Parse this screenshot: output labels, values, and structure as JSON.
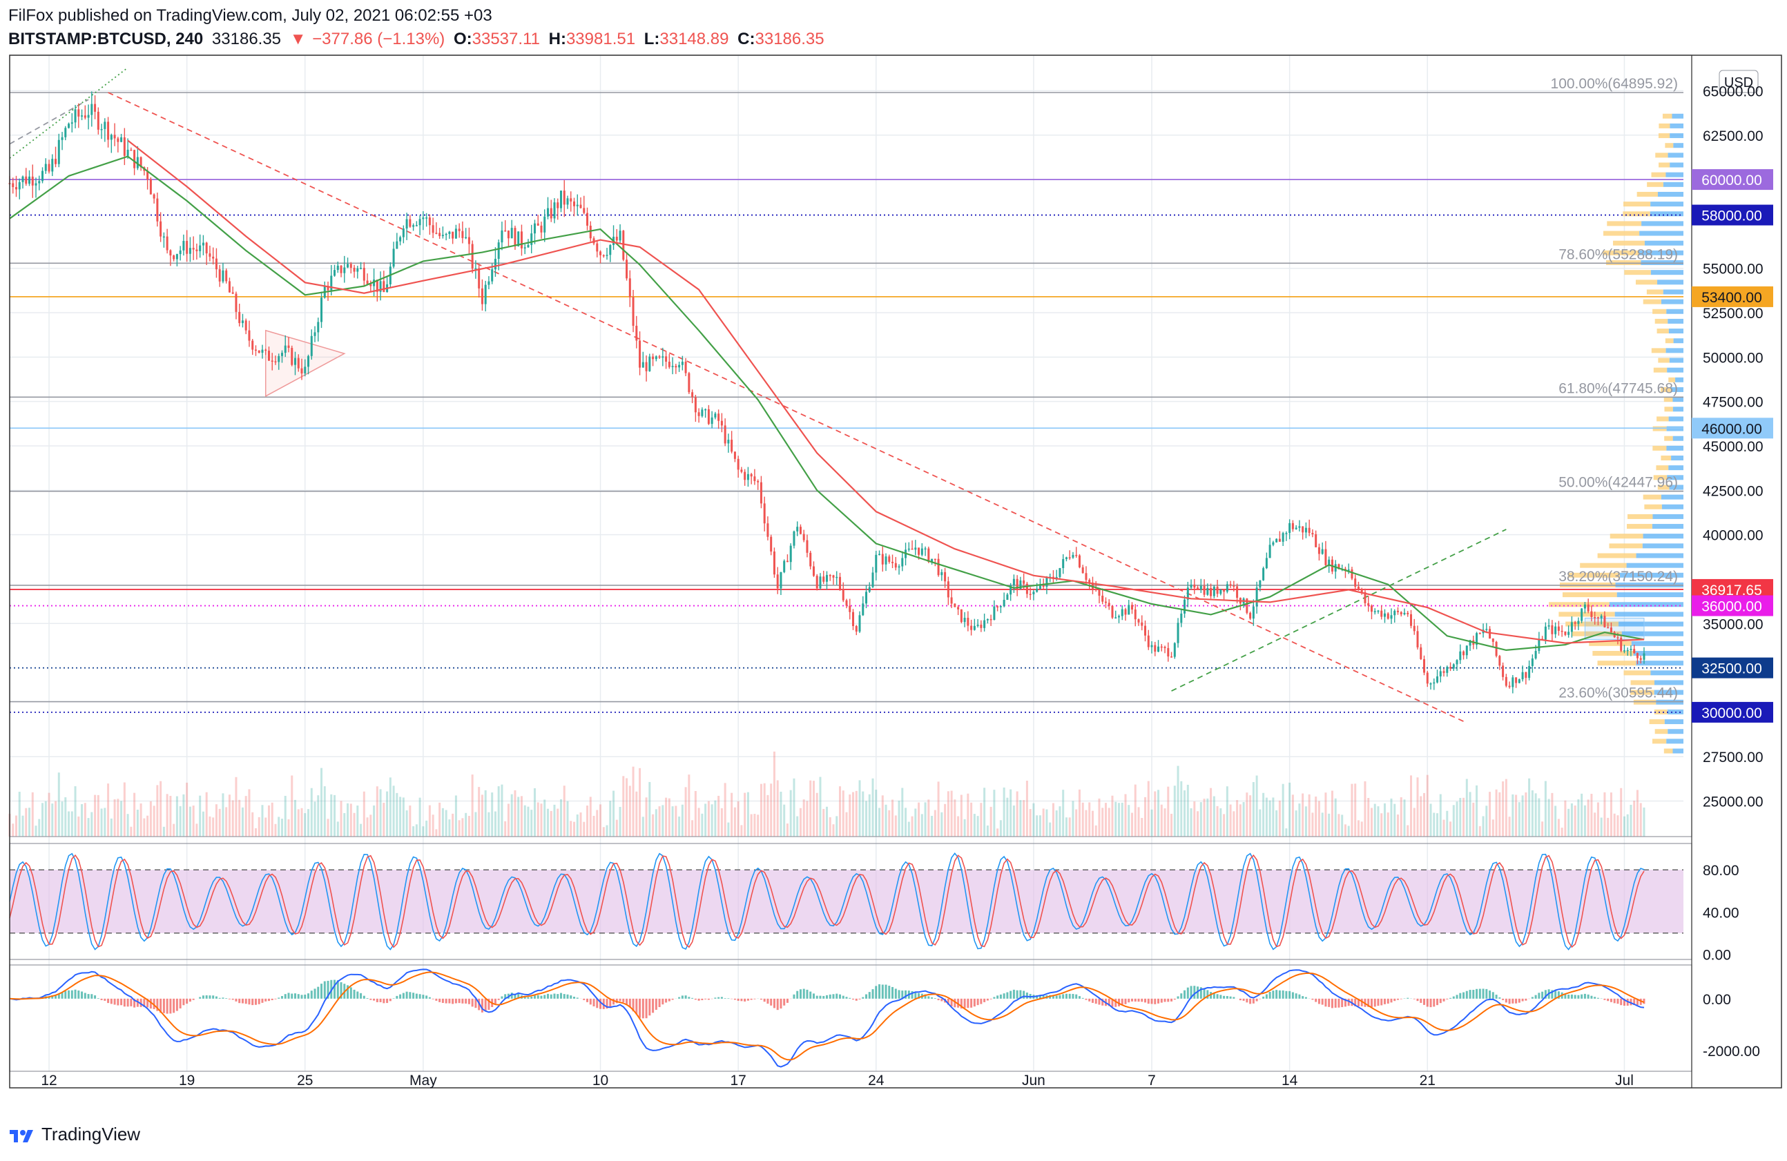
{
  "header": {
    "publisher": "FilFox published on TradingView.com, July 02, 2021 06:02:55 +03",
    "symbol": "BITSTAMP:BTCUSD, 240",
    "last": "33186.35",
    "change_arrow": "▼",
    "change": "−377.86 (−1.13%)",
    "open_label": "O:",
    "open": "33537.11",
    "high_label": "H:",
    "high": "33981.51",
    "low_label": "L:",
    "low": "33148.89",
    "close_label": "C:",
    "close": "33186.35"
  },
  "footer": {
    "brand": "TradingView",
    "logo_icon": "tradingview-logo-icon"
  },
  "colors": {
    "up": "#26a69a",
    "down": "#ef5350",
    "ema_fast": "#43a047",
    "ema_slow": "#ef5350",
    "grid": "#e8ecf0",
    "stoch_k": "#2196f3",
    "stoch_d": "#ef5350",
    "stoch_band": "#e1bee7",
    "macd": "#2962ff",
    "signal": "#ff6d00"
  },
  "chart_data": [
    {
      "type": "candlestick",
      "currency": "USD",
      "y_range": [
        23000,
        67000
      ],
      "x_range_days": [
        "2021-04-10",
        "2021-07-04"
      ],
      "x_ticks": [
        {
          "date": "2021-04-12",
          "label": "12"
        },
        {
          "date": "2021-04-19",
          "label": "19"
        },
        {
          "date": "2021-04-25",
          "label": "25"
        },
        {
          "date": "2021-05-01",
          "label": "May"
        },
        {
          "date": "2021-05-10",
          "label": "10"
        },
        {
          "date": "2021-05-17",
          "label": "17"
        },
        {
          "date": "2021-05-24",
          "label": "24"
        },
        {
          "date": "2021-06-01",
          "label": "Jun"
        },
        {
          "date": "2021-06-07",
          "label": "7"
        },
        {
          "date": "2021-06-14",
          "label": "14"
        },
        {
          "date": "2021-06-21",
          "label": "21"
        },
        {
          "date": "2021-07-01",
          "label": "Jul"
        }
      ],
      "y_ticks": [
        "65000.00",
        "62500.00",
        "55000.00",
        "52500.00",
        "50000.00",
        "47500.00",
        "45000.00",
        "42500.00",
        "40000.00",
        "35000.00",
        "27500.00",
        "25000.00"
      ],
      "fib_levels": [
        {
          "label": "100.00%(64895.92)",
          "value": 64895.92
        },
        {
          "label": "78.60%(55288.19)",
          "value": 55288.19
        },
        {
          "label": "61.80%(47745.68)",
          "value": 47745.68
        },
        {
          "label": "50.00%(42447.96)",
          "value": 42447.96
        },
        {
          "label": "38.20%(37150.24)",
          "value": 37150.24
        },
        {
          "label": "23.60%(30595.44)",
          "value": 30595.44
        }
      ],
      "price_tags": [
        {
          "label": "60000.00",
          "value": 60000,
          "color": "#9c6ade",
          "line": "solid"
        },
        {
          "label": "58000.00",
          "value": 58000,
          "color": "#1a1ab8",
          "line": "dotted"
        },
        {
          "label": "53400.00",
          "value": 53400,
          "color": "#f5a623",
          "line": "solid"
        },
        {
          "label": "46000.00",
          "value": 46000,
          "color": "#90caf9",
          "line": "solid"
        },
        {
          "label": "36917.65",
          "value": 36917.65,
          "color": "#f23645",
          "line": "solid"
        },
        {
          "label": "36000.00",
          "value": 36000,
          "color": "#e91ee9",
          "line": "dotted"
        },
        {
          "label": "32500.00",
          "value": 32500,
          "color": "#0d3b8c",
          "line": "dotted"
        },
        {
          "label": "30000.00",
          "value": 30000,
          "color": "#1a1ab8",
          "line": "dotted"
        }
      ],
      "series_close": [
        [
          "2021-04-10",
          59800
        ],
        [
          "2021-04-11",
          60100
        ],
        [
          "2021-04-12",
          60400
        ],
        [
          "2021-04-13",
          63200
        ],
        [
          "2021-04-14",
          63900
        ],
        [
          "2021-04-15",
          62800
        ],
        [
          "2021-04-16",
          61500
        ],
        [
          "2021-04-17",
          60300
        ],
        [
          "2021-04-18",
          55800
        ],
        [
          "2021-04-19",
          56200
        ],
        [
          "2021-04-20",
          55900
        ],
        [
          "2021-04-21",
          54100
        ],
        [
          "2021-04-22",
          51200
        ],
        [
          "2021-04-23",
          50000
        ],
        [
          "2021-04-24",
          50300
        ],
        [
          "2021-04-25",
          49200
        ],
        [
          "2021-04-26",
          53900
        ],
        [
          "2021-04-27",
          55200
        ],
        [
          "2021-04-28",
          54800
        ],
        [
          "2021-04-29",
          53600
        ],
        [
          "2021-04-30",
          57700
        ],
        [
          "2021-05-01",
          57900
        ],
        [
          "2021-05-02",
          56600
        ],
        [
          "2021-05-03",
          57200
        ],
        [
          "2021-05-04",
          53300
        ],
        [
          "2021-05-05",
          57400
        ],
        [
          "2021-05-06",
          56400
        ],
        [
          "2021-05-07",
          57400
        ],
        [
          "2021-05-08",
          58900
        ],
        [
          "2021-05-09",
          58200
        ],
        [
          "2021-05-10",
          55900
        ],
        [
          "2021-05-11",
          56700
        ],
        [
          "2021-05-12",
          49500
        ],
        [
          "2021-05-13",
          49700
        ],
        [
          "2021-05-14",
          49900
        ],
        [
          "2021-05-15",
          46800
        ],
        [
          "2021-05-16",
          46400
        ],
        [
          "2021-05-17",
          43600
        ],
        [
          "2021-05-18",
          42900
        ],
        [
          "2021-05-19",
          37000
        ],
        [
          "2021-05-20",
          40600
        ],
        [
          "2021-05-21",
          37300
        ],
        [
          "2021-05-22",
          37500
        ],
        [
          "2021-05-23",
          34700
        ],
        [
          "2021-05-24",
          38700
        ],
        [
          "2021-05-25",
          38400
        ],
        [
          "2021-05-26",
          39300
        ],
        [
          "2021-05-27",
          38500
        ],
        [
          "2021-05-28",
          35700
        ],
        [
          "2021-05-29",
          34600
        ],
        [
          "2021-05-30",
          35700
        ],
        [
          "2021-05-31",
          37300
        ],
        [
          "2021-06-01",
          36700
        ],
        [
          "2021-06-02",
          37600
        ],
        [
          "2021-06-03",
          39200
        ],
        [
          "2021-06-04",
          36900
        ],
        [
          "2021-06-05",
          35600
        ],
        [
          "2021-06-06",
          35800
        ],
        [
          "2021-06-07",
          33600
        ],
        [
          "2021-06-08",
          33400
        ],
        [
          "2021-06-09",
          37400
        ],
        [
          "2021-06-10",
          36700
        ],
        [
          "2021-06-11",
          37300
        ],
        [
          "2021-06-12",
          35500
        ],
        [
          "2021-06-13",
          39100
        ],
        [
          "2021-06-14",
          40500
        ],
        [
          "2021-06-15",
          40200
        ],
        [
          "2021-06-16",
          38300
        ],
        [
          "2021-06-17",
          38100
        ],
        [
          "2021-06-18",
          35800
        ],
        [
          "2021-06-19",
          35500
        ],
        [
          "2021-06-20",
          35600
        ],
        [
          "2021-06-21",
          31600
        ],
        [
          "2021-06-22",
          32500
        ],
        [
          "2021-06-23",
          33700
        ],
        [
          "2021-06-24",
          34700
        ],
        [
          "2021-06-25",
          31600
        ],
        [
          "2021-06-26",
          32200
        ],
        [
          "2021-06-27",
          34700
        ],
        [
          "2021-06-28",
          34500
        ],
        [
          "2021-06-29",
          35900
        ],
        [
          "2021-06-30",
          35000
        ],
        [
          "2021-07-01",
          33500
        ],
        [
          "2021-07-02",
          33186
        ]
      ],
      "ema_fast_series": [
        [
          "2021-04-10",
          57800
        ],
        [
          "2021-04-13",
          60200
        ],
        [
          "2021-04-16",
          61300
        ],
        [
          "2021-04-19",
          58800
        ],
        [
          "2021-04-22",
          56000
        ],
        [
          "2021-04-25",
          53500
        ],
        [
          "2021-04-28",
          54000
        ],
        [
          "2021-05-01",
          55400
        ],
        [
          "2021-05-04",
          55900
        ],
        [
          "2021-05-07",
          56600
        ],
        [
          "2021-05-10",
          57200
        ],
        [
          "2021-05-12",
          55200
        ],
        [
          "2021-05-15",
          51500
        ],
        [
          "2021-05-18",
          47600
        ],
        [
          "2021-05-21",
          42500
        ],
        [
          "2021-05-24",
          39500
        ],
        [
          "2021-05-27",
          38400
        ],
        [
          "2021-05-31",
          37000
        ],
        [
          "2021-06-03",
          37400
        ],
        [
          "2021-06-07",
          36100
        ],
        [
          "2021-06-10",
          35500
        ],
        [
          "2021-06-13",
          36500
        ],
        [
          "2021-06-16",
          38300
        ],
        [
          "2021-06-19",
          37200
        ],
        [
          "2021-06-22",
          34300
        ],
        [
          "2021-06-25",
          33500
        ],
        [
          "2021-06-28",
          33800
        ],
        [
          "2021-06-30",
          34500
        ],
        [
          "2021-07-02",
          34100
        ]
      ],
      "ema_slow_series": [
        [
          "2021-04-16",
          62200
        ],
        [
          "2021-04-19",
          59600
        ],
        [
          "2021-04-22",
          56800
        ],
        [
          "2021-04-25",
          54200
        ],
        [
          "2021-04-28",
          53600
        ],
        [
          "2021-05-01",
          54300
        ],
        [
          "2021-05-05",
          55200
        ],
        [
          "2021-05-10",
          56600
        ],
        [
          "2021-05-12",
          56200
        ],
        [
          "2021-05-15",
          53800
        ],
        [
          "2021-05-18",
          49200
        ],
        [
          "2021-05-21",
          44600
        ],
        [
          "2021-05-24",
          41300
        ],
        [
          "2021-05-28",
          39200
        ],
        [
          "2021-06-01",
          37700
        ],
        [
          "2021-06-05",
          37100
        ],
        [
          "2021-06-09",
          36400
        ],
        [
          "2021-06-13",
          36200
        ],
        [
          "2021-06-17",
          36900
        ],
        [
          "2021-06-21",
          35900
        ],
        [
          "2021-06-24",
          34500
        ],
        [
          "2021-06-28",
          33900
        ],
        [
          "2021-07-02",
          34100
        ]
      ]
    },
    {
      "type": "line",
      "indicator": "Stochastic",
      "y_range": [
        -5,
        105
      ],
      "y_ticks": [
        "80.00",
        "40.00",
        "0.00"
      ],
      "band": [
        20,
        80
      ]
    },
    {
      "type": "line",
      "indicator": "MACD",
      "y_range": [
        -2800,
        1300
      ],
      "y_ticks": [
        "0.00",
        "-2000.00"
      ]
    }
  ]
}
